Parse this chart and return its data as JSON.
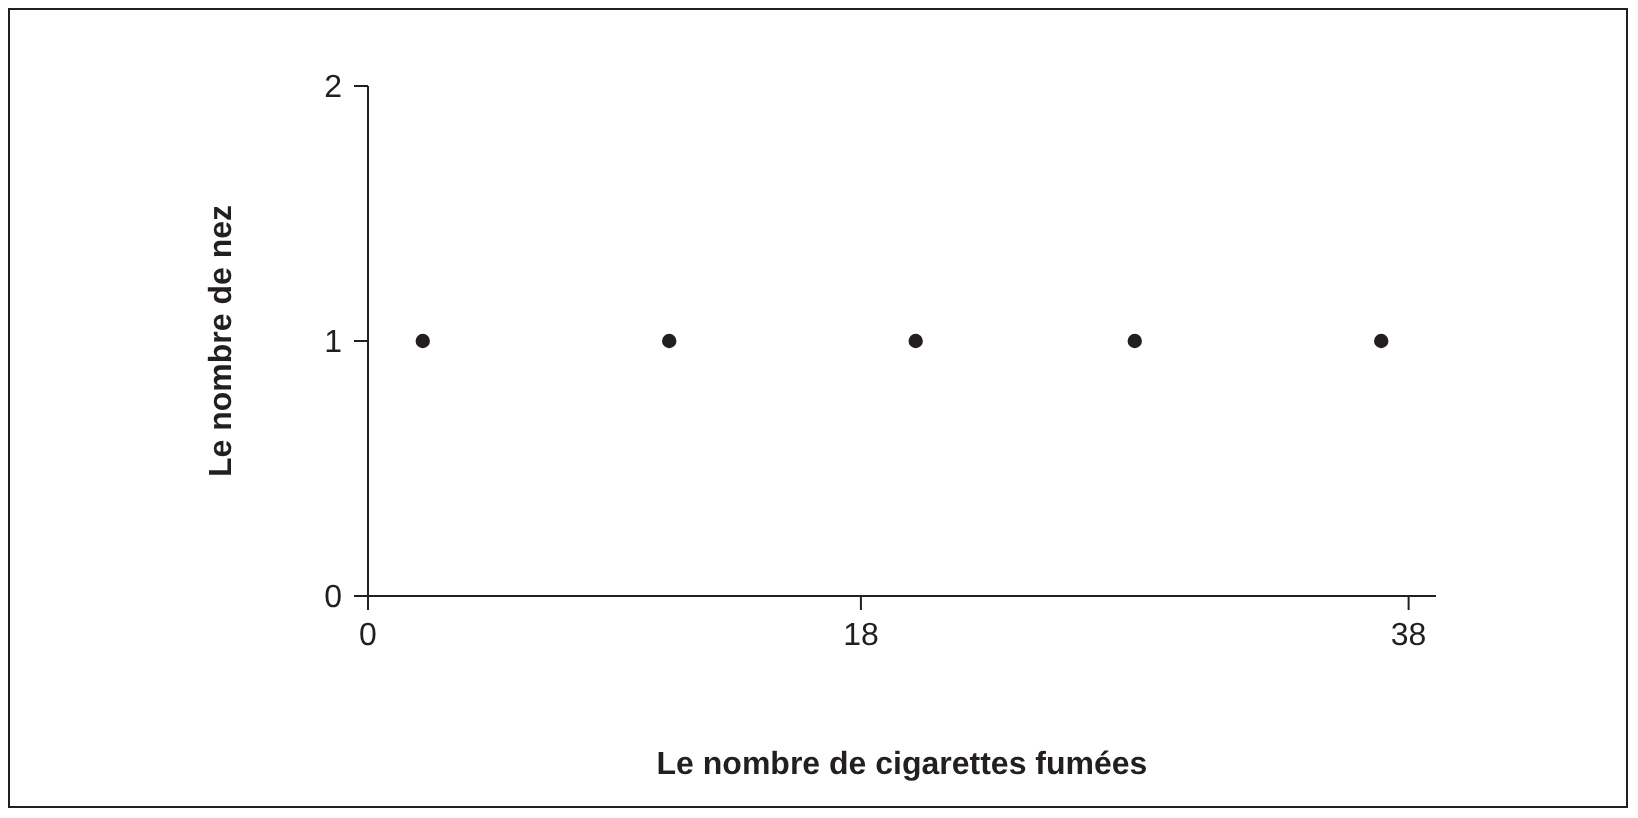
{
  "chart_data": {
    "type": "scatter",
    "xlabel": "Le nombre de cigarettes fumées",
    "ylabel": "Le nombre de nez",
    "x": [
      2,
      11,
      20,
      28,
      37
    ],
    "values": [
      1,
      1,
      1,
      1,
      1
    ],
    "color": "#231f20",
    "marker": "circle",
    "xlim": [
      0,
      39
    ],
    "xticks": [
      0,
      18,
      38
    ],
    "ylim": [
      0,
      2
    ],
    "yticks": [
      0,
      1,
      2
    ],
    "grid": false
  }
}
